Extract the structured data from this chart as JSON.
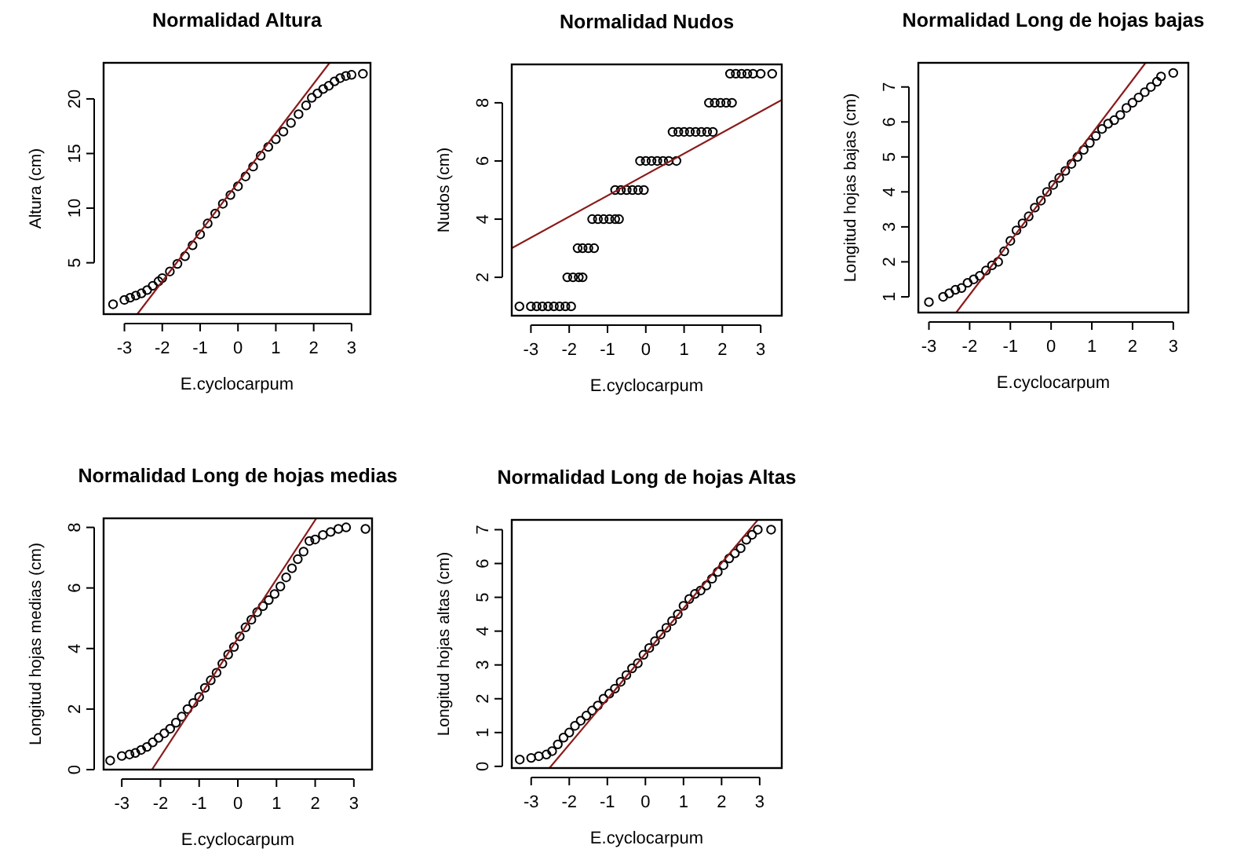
{
  "chart_data": [
    {
      "type": "scatter",
      "title": "Normalidad Altura",
      "xlabel": "E.cyclocarpum",
      "ylabel": "Altura (cm)",
      "xlim": [
        -3.55,
        3.5
      ],
      "ylim": [
        0.3,
        23.3
      ],
      "xticks": [
        -3,
        -2,
        -1,
        0,
        1,
        2,
        3
      ],
      "yticks": [
        5,
        10,
        15,
        20
      ],
      "grid": false,
      "marker": "circle",
      "series": [
        {
          "color": "#000000",
          "x": [
            -3.3,
            -3.0,
            -2.85,
            -2.7,
            -2.55,
            -2.4,
            -2.25,
            -2.1,
            -2.0,
            -1.8,
            -1.6,
            -1.4,
            -1.2,
            -1.0,
            -0.8,
            -0.6,
            -0.4,
            -0.2,
            0,
            0.2,
            0.4,
            0.6,
            0.8,
            1.0,
            1.2,
            1.4,
            1.6,
            1.8,
            1.95,
            2.1,
            2.25,
            2.4,
            2.55,
            2.7,
            2.85,
            3.0,
            3.3
          ],
          "values": [
            1.2,
            1.6,
            1.8,
            2.0,
            2.2,
            2.5,
            2.9,
            3.3,
            3.6,
            4.2,
            4.9,
            5.6,
            6.6,
            7.6,
            8.6,
            9.5,
            10.4,
            11.2,
            12.0,
            12.9,
            13.8,
            14.8,
            15.6,
            16.3,
            17.0,
            17.8,
            18.6,
            19.4,
            20.1,
            20.5,
            20.9,
            21.2,
            21.6,
            21.9,
            22.1,
            22.2,
            22.3
          ]
        },
        {
          "type": "line",
          "color": "#8b1a1a",
          "marker": "none",
          "x": [
            -2.66,
            2.42
          ],
          "values": [
            0.3,
            23.3
          ]
        }
      ]
    },
    {
      "type": "scatter",
      "title": "Normalidad Nudos",
      "xlabel": "E.cyclocarpum",
      "ylabel": "Nudos (cm)",
      "xlim": [
        -3.5,
        3.55
      ],
      "ylim": [
        0.68,
        9.32
      ],
      "xticks": [
        -3,
        -2,
        -1,
        0,
        1,
        2,
        3
      ],
      "yticks": [
        2,
        4,
        6,
        8
      ],
      "grid": false,
      "marker": "circle",
      "series": [
        {
          "color": "#000000",
          "x": [
            -3.3,
            -3.0,
            -2.85,
            -2.7,
            -2.55,
            -2.4,
            -2.25,
            -2.1,
            -1.95,
            -2.05,
            -1.9,
            -1.75,
            -1.65,
            -1.78,
            -1.65,
            -1.5,
            -1.35,
            -1.4,
            -1.25,
            -1.1,
            -0.95,
            -0.8,
            -0.7,
            -0.8,
            -0.65,
            -0.5,
            -0.35,
            -0.2,
            -0.05,
            -0.15,
            0.0,
            0.15,
            0.3,
            0.45,
            0.6,
            0.8,
            0.7,
            0.85,
            1.0,
            1.15,
            1.3,
            1.45,
            1.6,
            1.75,
            1.65,
            1.8,
            1.95,
            2.1,
            2.25,
            2.2,
            2.35,
            2.5,
            2.65,
            2.8,
            3.0,
            3.3
          ],
          "values": [
            1,
            1,
            1,
            1,
            1,
            1,
            1,
            1,
            1,
            2,
            2,
            2,
            2,
            3,
            3,
            3,
            3,
            4,
            4,
            4,
            4,
            4,
            4,
            5,
            5,
            5,
            5,
            5,
            5,
            6,
            6,
            6,
            6,
            6,
            6,
            6,
            7,
            7,
            7,
            7,
            7,
            7,
            7,
            7,
            8,
            8,
            8,
            8,
            8,
            9,
            9,
            9,
            9,
            9,
            9,
            9
          ]
        },
        {
          "type": "line",
          "color": "#8b1a1a",
          "marker": "none",
          "x": [
            -3.5,
            3.55
          ],
          "values": [
            3.0,
            8.1
          ]
        }
      ]
    },
    {
      "type": "scatter",
      "title": "Normalidad Long de hojas bajas",
      "xlabel": "E.cyclocarpum",
      "ylabel": "Longitud hojas bajas (cm)",
      "xlim": [
        -3.26,
        3.37
      ],
      "ylim": [
        0.55,
        7.69
      ],
      "xticks": [
        -3,
        -2,
        -1,
        0,
        1,
        2,
        3
      ],
      "yticks": [
        1,
        2,
        3,
        4,
        5,
        6,
        7
      ],
      "grid": false,
      "marker": "circle",
      "series": [
        {
          "color": "#000000",
          "x": [
            -3.0,
            -2.65,
            -2.5,
            -2.35,
            -2.2,
            -2.05,
            -1.9,
            -1.75,
            -1.6,
            -1.45,
            -1.3,
            -1.15,
            -1.0,
            -0.85,
            -0.7,
            -0.55,
            -0.4,
            -0.25,
            -0.1,
            0.05,
            0.2,
            0.35,
            0.5,
            0.65,
            0.8,
            0.95,
            1.1,
            1.25,
            1.4,
            1.55,
            1.7,
            1.85,
            2.0,
            2.15,
            2.3,
            2.45,
            2.6,
            2.7,
            3.0
          ],
          "values": [
            0.85,
            1.0,
            1.1,
            1.2,
            1.25,
            1.4,
            1.5,
            1.6,
            1.75,
            1.9,
            2.0,
            2.3,
            2.6,
            2.9,
            3.1,
            3.3,
            3.55,
            3.75,
            4.0,
            4.2,
            4.4,
            4.6,
            4.8,
            5.0,
            5.2,
            5.4,
            5.6,
            5.8,
            5.95,
            6.05,
            6.2,
            6.4,
            6.55,
            6.7,
            6.85,
            7.0,
            7.15,
            7.3,
            7.4
          ]
        },
        {
          "type": "line",
          "color": "#8b1a1a",
          "marker": "none",
          "x": [
            -2.33,
            2.32
          ],
          "values": [
            0.55,
            7.69
          ]
        }
      ]
    },
    {
      "type": "scatter",
      "title": "Normalidad Long de hojas medias",
      "xlabel": "E.cyclocarpum",
      "ylabel": "Longitud hojas medias (cm)",
      "xlim": [
        -3.47,
        3.47
      ],
      "ylim": [
        0,
        8.3
      ],
      "xticks": [
        -3,
        -2,
        -1,
        0,
        1,
        2,
        3
      ],
      "yticks": [
        0,
        2,
        4,
        6,
        8
      ],
      "grid": false,
      "marker": "circle",
      "series": [
        {
          "color": "#000000",
          "x": [
            -3.3,
            -3.0,
            -2.8,
            -2.65,
            -2.5,
            -2.35,
            -2.2,
            -2.05,
            -1.9,
            -1.75,
            -1.6,
            -1.45,
            -1.3,
            -1.15,
            -1.0,
            -0.85,
            -0.7,
            -0.55,
            -0.4,
            -0.25,
            -0.1,
            0.05,
            0.2,
            0.35,
            0.5,
            0.65,
            0.8,
            0.95,
            1.1,
            1.25,
            1.4,
            1.55,
            1.7,
            1.85,
            2.0,
            2.2,
            2.4,
            2.6,
            2.8,
            3.3
          ],
          "values": [
            0.3,
            0.45,
            0.5,
            0.55,
            0.65,
            0.75,
            0.9,
            1.05,
            1.2,
            1.35,
            1.55,
            1.75,
            2.0,
            2.2,
            2.4,
            2.7,
            2.95,
            3.2,
            3.5,
            3.8,
            4.05,
            4.4,
            4.7,
            4.95,
            5.2,
            5.4,
            5.6,
            5.8,
            6.05,
            6.35,
            6.65,
            6.95,
            7.2,
            7.55,
            7.6,
            7.75,
            7.85,
            7.95,
            8.0,
            7.95
          ]
        },
        {
          "type": "line",
          "color": "#8b1a1a",
          "marker": "none",
          "x": [
            -2.22,
            2.03
          ],
          "values": [
            0,
            8.3
          ]
        }
      ]
    },
    {
      "type": "scatter",
      "title": "Normalidad Long de hojas Altas",
      "xlabel": "E.cyclocarpum",
      "ylabel": "Longitud hojas altas (cm)",
      "xlim": [
        -3.51,
        3.58
      ],
      "ylim": [
        -0.05,
        7.29
      ],
      "xticks": [
        -3,
        -2,
        -1,
        0,
        1,
        2,
        3
      ],
      "yticks": [
        0,
        1,
        2,
        3,
        4,
        5,
        6,
        7
      ],
      "grid": false,
      "marker": "circle",
      "series": [
        {
          "color": "#000000",
          "x": [
            -3.3,
            -3.0,
            -2.8,
            -2.6,
            -2.45,
            -2.3,
            -2.15,
            -2.0,
            -1.85,
            -1.7,
            -1.55,
            -1.4,
            -1.25,
            -1.1,
            -0.95,
            -0.8,
            -0.65,
            -0.5,
            -0.35,
            -0.2,
            -0.05,
            0.1,
            0.25,
            0.4,
            0.55,
            0.7,
            0.85,
            1.0,
            1.15,
            1.3,
            1.45,
            1.6,
            1.75,
            1.9,
            2.05,
            2.2,
            2.35,
            2.5,
            2.65,
            2.8,
            2.95,
            3.3
          ],
          "values": [
            0.2,
            0.25,
            0.3,
            0.35,
            0.45,
            0.65,
            0.85,
            1.0,
            1.2,
            1.35,
            1.5,
            1.65,
            1.8,
            2.0,
            2.15,
            2.3,
            2.5,
            2.7,
            2.9,
            3.05,
            3.3,
            3.5,
            3.7,
            3.9,
            4.1,
            4.3,
            4.5,
            4.75,
            4.95,
            5.1,
            5.2,
            5.35,
            5.55,
            5.75,
            5.95,
            6.15,
            6.3,
            6.45,
            6.7,
            6.85,
            7.0,
            7.0
          ]
        },
        {
          "type": "line",
          "color": "#8b1a1a",
          "marker": "none",
          "x": [
            -2.52,
            2.95
          ],
          "values": [
            -0.05,
            7.29
          ]
        }
      ]
    }
  ]
}
